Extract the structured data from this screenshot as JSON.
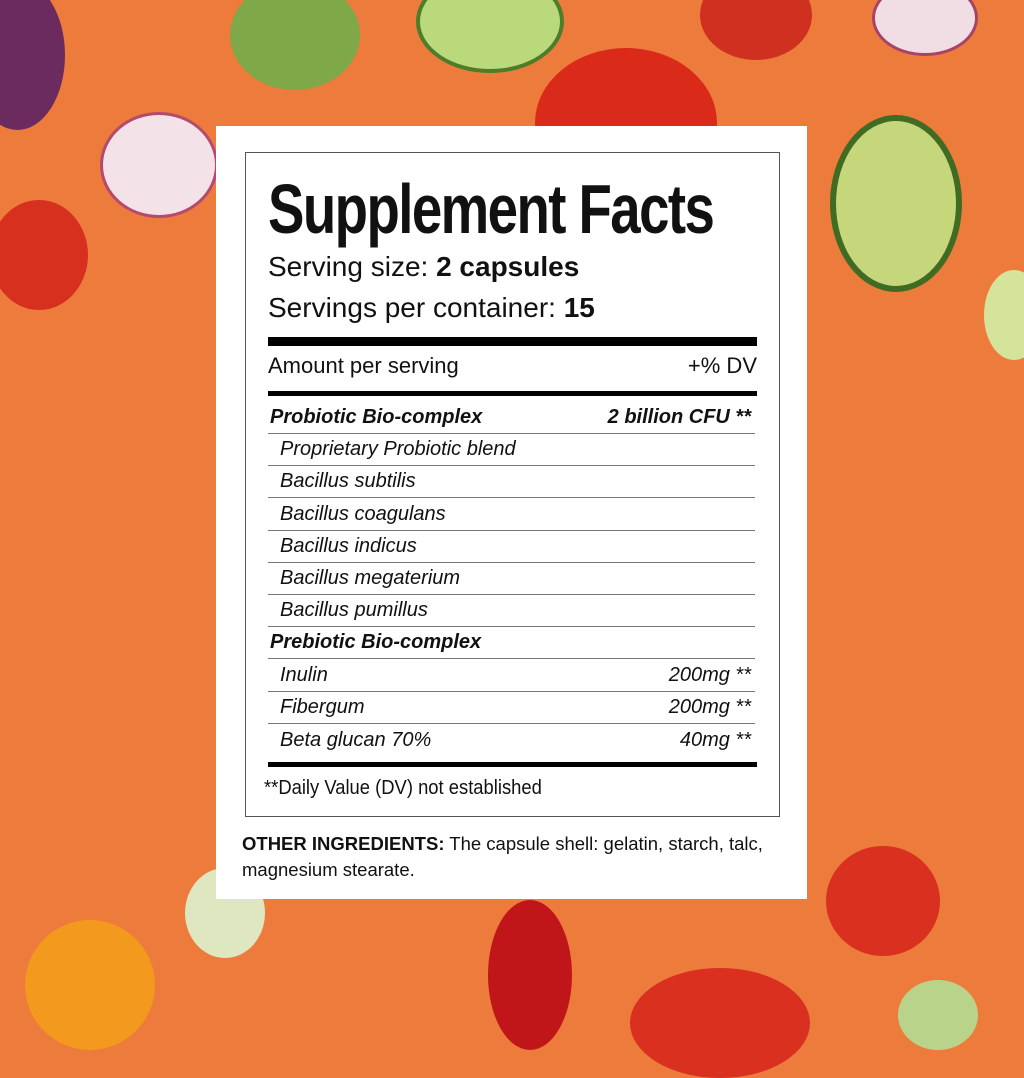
{
  "label": {
    "title": "Supplement Facts",
    "serving_size_label": "Serving size:",
    "serving_size_value": "2 capsules",
    "servings_per_container_label": "Servings per container:",
    "servings_per_container_value": "15",
    "amount_per_serving": "Amount per serving",
    "dv_header": "+% DV",
    "rows": [
      {
        "name": "Probiotic Bio-complex",
        "amount": "2 billion CFU **",
        "header": true
      },
      {
        "name": "Proprietary Probiotic blend",
        "amount": ""
      },
      {
        "name": "Bacillus subtilis",
        "amount": ""
      },
      {
        "name": "Bacillus coagulans",
        "amount": ""
      },
      {
        "name": "Bacillus indicus",
        "amount": ""
      },
      {
        "name": "Bacillus megaterium",
        "amount": ""
      },
      {
        "name": "Bacillus pumillus",
        "amount": ""
      },
      {
        "name": "Prebiotic Bio-complex",
        "amount": "",
        "header": true
      },
      {
        "name": "Inulin",
        "amount": "200mg **"
      },
      {
        "name": "Fibergum",
        "amount": "200mg **"
      },
      {
        "name": "Beta glucan 70%",
        "amount": "40mg **"
      }
    ],
    "footnote": "**Daily Value (DV) not established"
  },
  "other_ingredients": {
    "label": "OTHER INGREDIENTS:",
    "text": " The capsule shell: gelatin, starch, talc, magnesium stearate."
  },
  "colors": {
    "background": "#ec7b3c",
    "card": "#ffffff"
  }
}
